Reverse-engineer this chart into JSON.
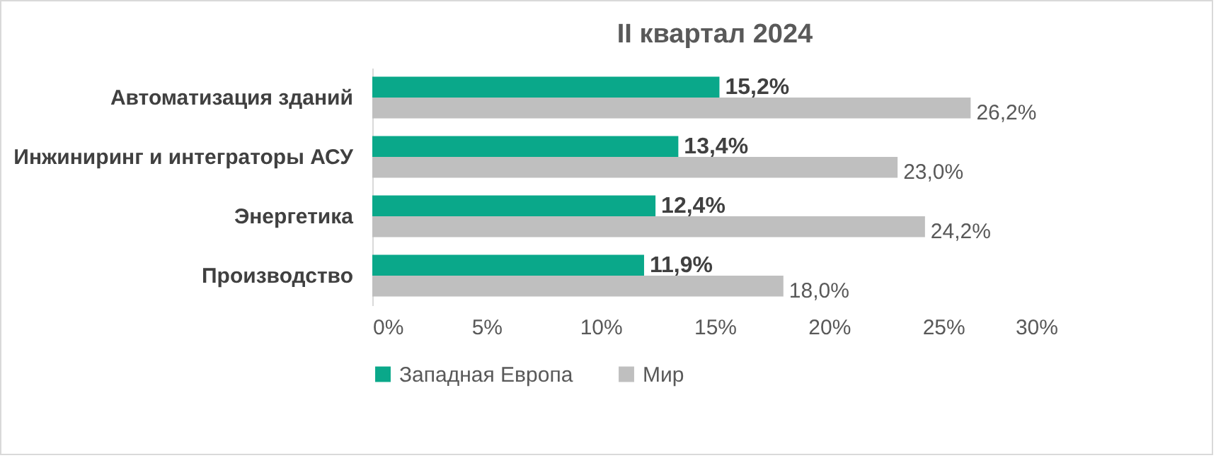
{
  "chart_data": {
    "type": "bar",
    "orientation": "horizontal",
    "title": "II квартал 2024",
    "categories": [
      "Автоматизация зданий",
      "Инжиниринг и интеграторы АСУ",
      "Энергетика",
      "Производство"
    ],
    "series": [
      {
        "name": "Западная Европа",
        "color": "#0aa88a",
        "values": [
          15.2,
          13.4,
          12.4,
          11.9
        ],
        "value_labels": [
          "15,2%",
          "13,4%",
          "12,4%",
          "11,9%"
        ]
      },
      {
        "name": "Мир",
        "color": "#bfbfbf",
        "values": [
          26.2,
          23.0,
          24.2,
          18.0
        ],
        "value_labels": [
          "26,2%",
          "23,0%",
          "24,2%",
          "18,0%"
        ]
      }
    ],
    "xlim": [
      0,
      30
    ],
    "xticks": [
      {
        "value": 0,
        "label": "0%"
      },
      {
        "value": 5,
        "label": "5%"
      },
      {
        "value": 10,
        "label": "10%"
      },
      {
        "value": 15,
        "label": "15%"
      },
      {
        "value": 20,
        "label": "20%"
      },
      {
        "value": 25,
        "label": "25%"
      },
      {
        "value": 30,
        "label": "30%"
      }
    ],
    "legend": "bottom"
  }
}
